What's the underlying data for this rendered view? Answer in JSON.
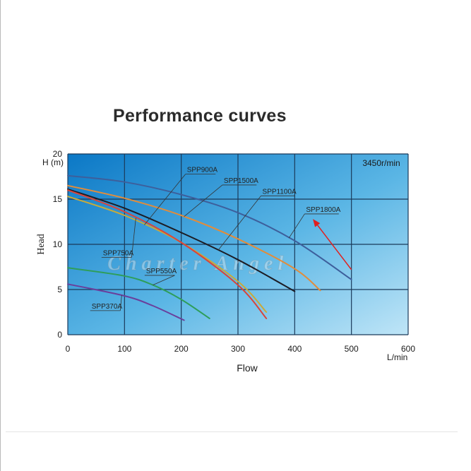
{
  "page": {
    "title": "Performance curves"
  },
  "chart_data": {
    "type": "line",
    "title": "Performance curves",
    "xlabel": "Flow",
    "xunit": "L/min",
    "ylabel": "Head",
    "yunit": "H (m)",
    "annotation": "3450r/min",
    "watermark": "Charter Angel",
    "xlim": [
      0,
      600
    ],
    "ylim": [
      0,
      20
    ],
    "xticks": [
      0,
      100,
      200,
      300,
      400,
      500,
      600
    ],
    "yticks": [
      0,
      5,
      10,
      15,
      20
    ],
    "grid": true,
    "colors": {
      "plot_dark": "#0b78c6",
      "plot_light": "#bfe5f7",
      "grid": "#1b3a5a",
      "arrow": "#e02020"
    },
    "series": [
      {
        "name": "SPP1800A",
        "color": "#3d5f9c",
        "label_flow": 420,
        "label_head": 13.6,
        "x": [
          0,
          100,
          200,
          300,
          400,
          500
        ],
        "y": [
          17.6,
          16.9,
          15.5,
          13.5,
          10.4,
          6.1
        ]
      },
      {
        "name": "SPP1500A",
        "color": "#e28c3a",
        "label_flow": 275,
        "label_head": 16.8,
        "x": [
          0,
          100,
          200,
          300,
          400,
          445
        ],
        "y": [
          16.5,
          15.1,
          13.2,
          10.6,
          7.3,
          4.9
        ]
      },
      {
        "name": "SPP1100A",
        "color": "#1c1c24",
        "label_flow": 343,
        "label_head": 15.6,
        "x": [
          0,
          100,
          200,
          300,
          400
        ],
        "y": [
          16.1,
          14.0,
          11.3,
          8.3,
          4.8
        ]
      },
      {
        "name": "SPP900A",
        "color": "#c8aa3a",
        "label_flow": 210,
        "label_head": 18.0,
        "x": [
          0,
          100,
          200,
          300,
          350
        ],
        "y": [
          15.3,
          13.2,
          10.2,
          5.9,
          2.5
        ]
      },
      {
        "name": "SPP750A",
        "color": "#d9443a",
        "label_flow": 62,
        "label_head": 8.8,
        "x": [
          0,
          100,
          200,
          300,
          350
        ],
        "y": [
          16.0,
          13.6,
          10.2,
          5.5,
          1.8
        ]
      },
      {
        "name": "SPP550A",
        "color": "#2e9e5a",
        "label_flow": 138,
        "label_head": 6.8,
        "x": [
          0,
          100,
          150,
          200,
          250
        ],
        "y": [
          7.4,
          6.5,
          5.5,
          3.9,
          1.8
        ]
      },
      {
        "name": "SPP370A",
        "color": "#6a3f9c",
        "label_flow": 42,
        "label_head": 2.9,
        "x": [
          0,
          100,
          150,
          205
        ],
        "y": [
          5.6,
          4.3,
          3.2,
          1.6
        ]
      }
    ],
    "arrow": {
      "from": [
        500,
        7.2
      ],
      "to": [
        432,
        12.8
      ]
    }
  }
}
